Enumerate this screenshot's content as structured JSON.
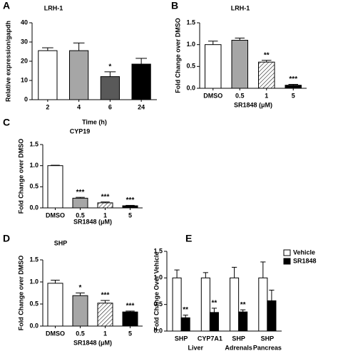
{
  "chart_data": [
    {
      "type": "bar",
      "label": "A",
      "title": "LRH-1",
      "xlabel": "Time (h)",
      "ylabel": "Relative expression/gapdh",
      "categories": [
        "2",
        "4",
        "6",
        "24"
      ],
      "values": [
        25.5,
        25.5,
        12,
        18.5
      ],
      "errors": [
        1.5,
        4,
        2.5,
        3
      ],
      "annotations": [
        null,
        null,
        "*",
        null
      ],
      "colors": [
        "#ffffff",
        "#a6a6a6",
        "#595959",
        "#000000"
      ],
      "hatched": [
        false,
        false,
        false,
        false
      ],
      "ylim": [
        0,
        40
      ],
      "yticks": [
        0,
        10,
        20,
        30,
        40
      ]
    },
    {
      "type": "bar",
      "label": "B",
      "title": "LRH-1",
      "xlabel": "SR1848 (μM)",
      "ylabel": "Fold Change over DMSO",
      "categories": [
        "DMSO",
        "0.5",
        "1",
        "5"
      ],
      "values": [
        1.0,
        1.1,
        0.6,
        0.07
      ],
      "errors": [
        0.08,
        0.05,
        0.04,
        0.02
      ],
      "annotations": [
        null,
        null,
        "**",
        "***"
      ],
      "colors": [
        "#ffffff",
        "#a6a6a6",
        "#ffffff",
        "#000000"
      ],
      "hatched": [
        false,
        false,
        true,
        false
      ],
      "ylim": [
        0,
        1.5
      ],
      "yticks": [
        {
          "value": 0,
          "label": "0.0"
        },
        {
          "value": 0.5,
          "label": "0.5"
        },
        {
          "value": 1,
          "label": "1.0"
        },
        {
          "value": 1.5,
          "label": "1.5"
        }
      ]
    },
    {
      "type": "bar",
      "label": "C",
      "title": "CYP19",
      "xlabel": "SR1848 (μM)",
      "ylabel": "Fold Change over DMSO",
      "categories": [
        "DMSO",
        "0.5",
        "1",
        "5"
      ],
      "values": [
        1.0,
        0.23,
        0.12,
        0.05
      ],
      "errors": [
        0.01,
        0.02,
        0.02,
        0.01
      ],
      "annotations": [
        null,
        "***",
        "***",
        "***"
      ],
      "colors": [
        "#ffffff",
        "#a6a6a6",
        "#ffffff",
        "#000000"
      ],
      "hatched": [
        false,
        false,
        true,
        false
      ],
      "ylim": [
        0,
        1.5
      ],
      "yticks": [
        {
          "value": 0,
          "label": "0.0"
        },
        {
          "value": 0.5,
          "label": "0.5"
        },
        {
          "value": 1,
          "label": "1.0"
        },
        {
          "value": 1.5,
          "label": "1.5"
        }
      ]
    },
    {
      "type": "bar",
      "label": "D",
      "title": "SHP",
      "xlabel": "SR1848 (μM)",
      "ylabel": "Fold Change over DMSO",
      "categories": [
        "DMSO",
        "0.5",
        "1",
        "5"
      ],
      "values": [
        0.97,
        0.69,
        0.52,
        0.32
      ],
      "errors": [
        0.07,
        0.06,
        0.06,
        0.02
      ],
      "annotations": [
        null,
        "*",
        "***",
        "***"
      ],
      "colors": [
        "#ffffff",
        "#a6a6a6",
        "#ffffff",
        "#000000"
      ],
      "hatched": [
        false,
        false,
        true,
        false
      ],
      "ylim": [
        0,
        1.5
      ],
      "yticks": [
        {
          "value": 0,
          "label": "0.0"
        },
        {
          "value": 0.5,
          "label": "0.5"
        },
        {
          "value": 1,
          "label": "1.0"
        },
        {
          "value": 1.5,
          "label": "1.5"
        }
      ]
    },
    {
      "type": "grouped_bar",
      "label": "E",
      "ylabel": "Fold Change Over Vehicle",
      "categories": [
        "SHP",
        "CYP7A1",
        "SHP",
        "SHP"
      ],
      "groups": [
        "Liver",
        null,
        "Adrenals",
        "Pancreas"
      ],
      "series": [
        {
          "name": "Vehicle",
          "color": "#ffffff",
          "values": [
            1.0,
            1.0,
            1.0,
            1.0
          ],
          "errors": [
            0.15,
            0.1,
            0.2,
            0.3
          ],
          "annotations": [
            null,
            null,
            null,
            null
          ]
        },
        {
          "name": "SR1848",
          "color": "#000000",
          "values": [
            0.25,
            0.35,
            0.36,
            0.57
          ],
          "errors": [
            0.05,
            0.08,
            0.04,
            0.2
          ],
          "annotations": [
            "**",
            "**",
            "**",
            null
          ]
        }
      ],
      "legend": "upper right",
      "ylim": [
        0,
        1.5
      ],
      "yticks": [
        {
          "value": 0,
          "label": "0.0"
        },
        {
          "value": 0.5,
          "label": "0.5"
        },
        {
          "value": 1,
          "label": "1.0"
        },
        {
          "value": 1.5,
          "label": "1.5"
        }
      ]
    }
  ]
}
